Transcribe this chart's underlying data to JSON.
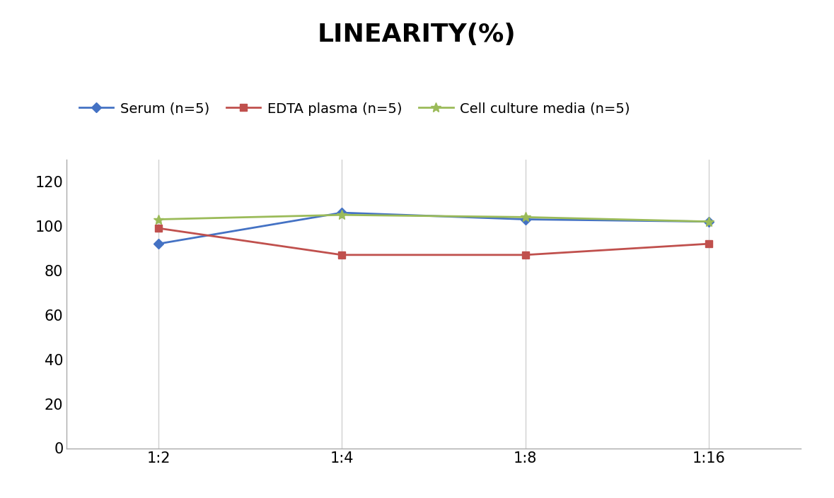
{
  "title": "LINEARITY(%)",
  "x_labels": [
    "1:2",
    "1:4",
    "1:8",
    "1:16"
  ],
  "x_positions": [
    0,
    1,
    2,
    3
  ],
  "series": [
    {
      "name": "Serum (n=5)",
      "values": [
        92,
        106,
        103,
        102
      ],
      "color": "#4472C4",
      "marker": "D",
      "markersize": 7,
      "linewidth": 2
    },
    {
      "name": "EDTA plasma (n=5)",
      "values": [
        99,
        87,
        87,
        92
      ],
      "color": "#C0504D",
      "marker": "s",
      "markersize": 7,
      "linewidth": 2
    },
    {
      "name": "Cell culture media (n=5)",
      "values": [
        103,
        105,
        104,
        102
      ],
      "color": "#9BBB59",
      "marker": "*",
      "markersize": 10,
      "linewidth": 2
    }
  ],
  "ylim": [
    0,
    130
  ],
  "yticks": [
    0,
    20,
    40,
    60,
    80,
    100,
    120
  ],
  "title_fontsize": 26,
  "legend_fontsize": 14,
  "tick_fontsize": 15,
  "background_color": "#ffffff",
  "grid_color": "#d0d0d0"
}
